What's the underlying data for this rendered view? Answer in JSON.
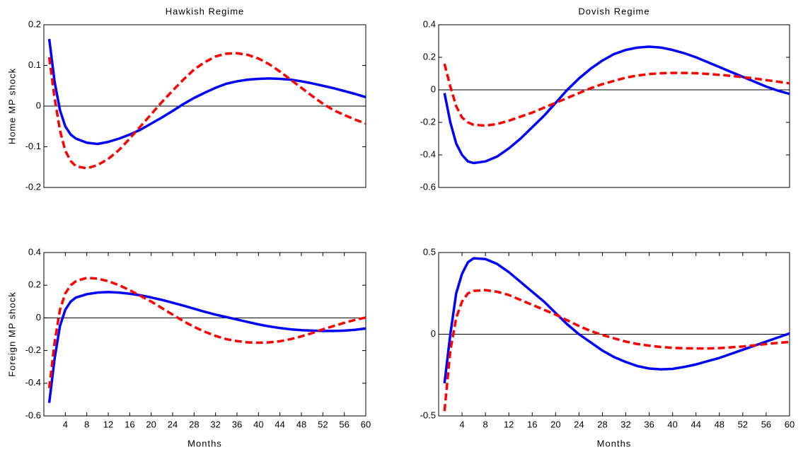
{
  "chart_data": [
    {
      "type": "line",
      "title": "Hawkish Regime",
      "ylabel": "Home MP shock",
      "x": [
        1,
        2,
        3,
        4,
        5,
        6,
        8,
        10,
        12,
        14,
        16,
        18,
        20,
        22,
        24,
        26,
        28,
        30,
        32,
        34,
        36,
        38,
        40,
        42,
        44,
        46,
        48,
        50,
        52,
        54,
        56,
        58,
        60
      ],
      "xlim": [
        0,
        60
      ],
      "ylim": [
        -0.2,
        0.2
      ],
      "yticks": [
        -0.2,
        -0.1,
        0,
        0.1,
        0.2
      ],
      "zero_line": true,
      "series": [
        {
          "color": "#0000ff",
          "dashed": false,
          "values": [
            0.165,
            0.06,
            -0.01,
            -0.05,
            -0.07,
            -0.08,
            -0.09,
            -0.093,
            -0.088,
            -0.08,
            -0.07,
            -0.058,
            -0.043,
            -0.028,
            -0.012,
            0.005,
            0.02,
            0.033,
            0.045,
            0.055,
            0.061,
            0.065,
            0.067,
            0.068,
            0.067,
            0.065,
            0.061,
            0.056,
            0.05,
            0.044,
            0.037,
            0.03,
            0.022
          ]
        },
        {
          "color": "#ff0000",
          "dashed": true,
          "values": [
            0.12,
            0.02,
            -0.06,
            -0.11,
            -0.135,
            -0.148,
            -0.153,
            -0.145,
            -0.13,
            -0.108,
            -0.08,
            -0.05,
            -0.02,
            0.01,
            0.038,
            0.065,
            0.09,
            0.108,
            0.122,
            0.129,
            0.13,
            0.126,
            0.117,
            0.103,
            0.085,
            0.065,
            0.045,
            0.025,
            0.006,
            -0.01,
            -0.022,
            -0.033,
            -0.043
          ]
        }
      ]
    },
    {
      "type": "line",
      "title": "Dovish Regime",
      "x": [
        1,
        2,
        3,
        4,
        5,
        6,
        8,
        10,
        12,
        14,
        16,
        18,
        20,
        22,
        24,
        26,
        28,
        30,
        32,
        34,
        36,
        38,
        40,
        42,
        44,
        46,
        48,
        50,
        52,
        54,
        56,
        58,
        60
      ],
      "xlim": [
        0,
        60
      ],
      "ylim": [
        -0.6,
        0.4
      ],
      "yticks": [
        -0.6,
        -0.4,
        -0.2,
        0,
        0.2,
        0.4
      ],
      "zero_line": true,
      "series": [
        {
          "color": "#0000ff",
          "dashed": false,
          "values": [
            -0.02,
            -0.2,
            -0.33,
            -0.4,
            -0.44,
            -0.45,
            -0.44,
            -0.41,
            -0.36,
            -0.3,
            -0.23,
            -0.16,
            -0.08,
            0,
            0.07,
            0.13,
            0.18,
            0.22,
            0.245,
            0.26,
            0.265,
            0.26,
            0.245,
            0.225,
            0.2,
            0.17,
            0.14,
            0.11,
            0.08,
            0.05,
            0.02,
            -0.005,
            -0.025
          ]
        },
        {
          "color": "#ff0000",
          "dashed": true,
          "values": [
            0.16,
            0.02,
            -0.1,
            -0.17,
            -0.2,
            -0.215,
            -0.22,
            -0.21,
            -0.19,
            -0.165,
            -0.14,
            -0.11,
            -0.08,
            -0.05,
            -0.02,
            0.01,
            0.035,
            0.055,
            0.075,
            0.088,
            0.097,
            0.102,
            0.104,
            0.104,
            0.102,
            0.098,
            0.092,
            0.086,
            0.078,
            0.07,
            0.06,
            0.05,
            0.04
          ]
        }
      ]
    },
    {
      "type": "line",
      "ylabel": "Foreign MP shock",
      "xlabel": "Months",
      "x": [
        1,
        2,
        3,
        4,
        5,
        6,
        8,
        10,
        12,
        14,
        16,
        18,
        20,
        22,
        24,
        26,
        28,
        30,
        32,
        34,
        36,
        38,
        40,
        42,
        44,
        46,
        48,
        50,
        52,
        54,
        56,
        58,
        60
      ],
      "xlim": [
        0,
        60
      ],
      "xticks": [
        4,
        8,
        12,
        16,
        20,
        24,
        28,
        32,
        36,
        40,
        44,
        48,
        52,
        56,
        60
      ],
      "ylim": [
        -0.6,
        0.4
      ],
      "yticks": [
        -0.6,
        -0.4,
        -0.2,
        0,
        0.2,
        0.4
      ],
      "zero_line": true,
      "series": [
        {
          "color": "#0000ff",
          "dashed": false,
          "values": [
            -0.52,
            -0.25,
            -0.05,
            0.05,
            0.1,
            0.125,
            0.145,
            0.155,
            0.158,
            0.155,
            0.148,
            0.138,
            0.125,
            0.11,
            0.093,
            0.075,
            0.056,
            0.037,
            0.02,
            0.005,
            -0.01,
            -0.025,
            -0.04,
            -0.052,
            -0.062,
            -0.07,
            -0.075,
            -0.078,
            -0.08,
            -0.08,
            -0.078,
            -0.073,
            -0.065
          ]
        },
        {
          "color": "#ff0000",
          "dashed": true,
          "values": [
            -0.43,
            -0.15,
            0.05,
            0.15,
            0.2,
            0.225,
            0.245,
            0.24,
            0.225,
            0.2,
            0.17,
            0.135,
            0.1,
            0.06,
            0.02,
            -0.02,
            -0.055,
            -0.085,
            -0.11,
            -0.13,
            -0.142,
            -0.15,
            -0.152,
            -0.15,
            -0.143,
            -0.13,
            -0.113,
            -0.093,
            -0.07,
            -0.05,
            -0.03,
            -0.012,
            0.002
          ]
        }
      ]
    },
    {
      "type": "line",
      "xlabel": "Months",
      "x": [
        1,
        2,
        3,
        4,
        5,
        6,
        8,
        10,
        12,
        14,
        16,
        18,
        20,
        22,
        24,
        26,
        28,
        30,
        32,
        34,
        36,
        38,
        40,
        42,
        44,
        46,
        48,
        50,
        52,
        54,
        56,
        58,
        60
      ],
      "xlim": [
        0,
        60
      ],
      "xticks": [
        4,
        8,
        12,
        16,
        20,
        24,
        28,
        32,
        36,
        40,
        44,
        48,
        52,
        56,
        60
      ],
      "ylim": [
        -0.5,
        0.5
      ],
      "yticks": [
        -0.5,
        0,
        0.5
      ],
      "zero_line": true,
      "series": [
        {
          "color": "#0000ff",
          "dashed": false,
          "values": [
            -0.3,
            0.0,
            0.25,
            0.37,
            0.44,
            0.465,
            0.46,
            0.43,
            0.38,
            0.32,
            0.26,
            0.2,
            0.13,
            0.06,
            0.0,
            -0.05,
            -0.1,
            -0.14,
            -0.17,
            -0.195,
            -0.21,
            -0.215,
            -0.212,
            -0.2,
            -0.185,
            -0.165,
            -0.145,
            -0.12,
            -0.095,
            -0.07,
            -0.045,
            -0.02,
            0.005
          ]
        },
        {
          "color": "#ff0000",
          "dashed": true,
          "values": [
            -0.47,
            -0.1,
            0.1,
            0.2,
            0.25,
            0.265,
            0.27,
            0.26,
            0.24,
            0.21,
            0.18,
            0.15,
            0.12,
            0.085,
            0.05,
            0.02,
            -0.005,
            -0.025,
            -0.045,
            -0.06,
            -0.07,
            -0.078,
            -0.083,
            -0.086,
            -0.087,
            -0.087,
            -0.085,
            -0.08,
            -0.075,
            -0.068,
            -0.06,
            -0.053,
            -0.047
          ]
        }
      ]
    }
  ]
}
